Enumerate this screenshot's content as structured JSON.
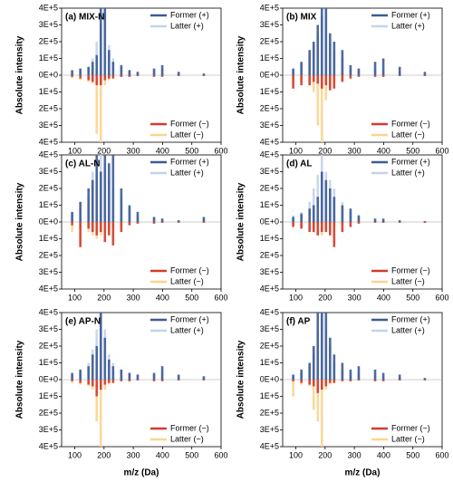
{
  "chart_data": [
    {
      "type": "bar",
      "title": "(a) MIX-N",
      "y_label": "Absolute intensity",
      "x": [
        91,
        119,
        147,
        161,
        175,
        189,
        203,
        217,
        231,
        259,
        287,
        315,
        371,
        399,
        455,
        541
      ],
      "xlim": [
        55,
        600
      ],
      "xticks": [
        100,
        200,
        300,
        400,
        500,
        600
      ],
      "ylim": [
        -400000,
        400000
      ],
      "yticks": [
        {
          "value": -400000,
          "label": "4E+5"
        },
        {
          "value": -300000,
          "label": "3E+5"
        },
        {
          "value": -200000,
          "label": "2E+5"
        },
        {
          "value": -100000,
          "label": "1E+5"
        },
        {
          "value": 0,
          "label": "0E+0"
        },
        {
          "value": 100000,
          "label": "1E+5"
        },
        {
          "value": 200000,
          "label": "2E+5"
        },
        {
          "value": 300000,
          "label": "3E+5"
        },
        {
          "value": 400000,
          "label": "4E+5"
        }
      ],
      "series": [
        {
          "name": "Latter (+)",
          "color": "#c5d3e8",
          "legend": "upper right",
          "values": [
            20000,
            30000,
            40000,
            100000,
            200000,
            300000,
            400000,
            180000,
            100000,
            50000,
            30000,
            20000,
            30000,
            40000,
            20000,
            10000
          ]
        },
        {
          "name": "Former (+)",
          "color": "#3b5b96",
          "legend": "upper right",
          "values": [
            30000,
            40000,
            50000,
            80000,
            120000,
            400000,
            400000,
            150000,
            80000,
            60000,
            30000,
            20000,
            40000,
            60000,
            20000,
            10000
          ]
        },
        {
          "name": "Latter (−)",
          "color": "#fcd490",
          "legend": "lower right",
          "values": [
            -20000,
            -30000,
            -40000,
            -50000,
            -350000,
            -400000,
            -60000,
            -30000,
            -20000,
            -10000,
            -10000,
            -5000,
            -10000,
            -10000,
            -5000,
            -5000
          ]
        },
        {
          "name": "Former (−)",
          "color": "#d23b2a",
          "legend": "lower right",
          "values": [
            -10000,
            -20000,
            -30000,
            -40000,
            -60000,
            -60000,
            -30000,
            -20000,
            -20000,
            -10000,
            -10000,
            -5000,
            -10000,
            -10000,
            -5000,
            -5000
          ]
        }
      ]
    },
    {
      "type": "bar",
      "title": "(b) MIX",
      "y_label": "Absolute intensity",
      "x": [
        91,
        119,
        147,
        161,
        175,
        189,
        203,
        217,
        231,
        259,
        287,
        315,
        371,
        399,
        455,
        541
      ],
      "xlim": [
        55,
        600
      ],
      "xticks": [
        100,
        200,
        300,
        400,
        500,
        600
      ],
      "ylim": [
        -400000,
        400000
      ],
      "yticks": [
        {
          "value": -400000,
          "label": "4E+5"
        },
        {
          "value": -300000,
          "label": "3E+5"
        },
        {
          "value": -200000,
          "label": "2E+5"
        },
        {
          "value": -100000,
          "label": "1E+5"
        },
        {
          "value": 0,
          "label": "0E+0"
        },
        {
          "value": 100000,
          "label": "1E+5"
        },
        {
          "value": 200000,
          "label": "2E+5"
        },
        {
          "value": 300000,
          "label": "3E+5"
        },
        {
          "value": 400000,
          "label": "4E+5"
        }
      ],
      "series": [
        {
          "name": "Latter (+)",
          "color": "#c5d3e8",
          "legend": "upper right",
          "values": [
            30000,
            60000,
            120000,
            180000,
            250000,
            350000,
            400000,
            200000,
            150000,
            100000,
            40000,
            30000,
            30000,
            30000,
            20000,
            10000
          ]
        },
        {
          "name": "Former (+)",
          "color": "#3b5b96",
          "legend": "upper right",
          "values": [
            40000,
            80000,
            150000,
            200000,
            300000,
            400000,
            400000,
            250000,
            200000,
            150000,
            60000,
            40000,
            80000,
            100000,
            50000,
            20000
          ]
        },
        {
          "name": "Latter (−)",
          "color": "#fcd490",
          "legend": "lower right",
          "values": [
            -40000,
            -40000,
            -60000,
            -100000,
            -300000,
            -400000,
            -150000,
            -60000,
            -40000,
            -30000,
            -10000,
            -10000,
            -10000,
            -10000,
            -5000,
            -5000
          ]
        },
        {
          "name": "Former (−)",
          "color": "#d23b2a",
          "legend": "lower right",
          "values": [
            -80000,
            -60000,
            -60000,
            -40000,
            -50000,
            -80000,
            -60000,
            -90000,
            -80000,
            -40000,
            -20000,
            -10000,
            -10000,
            -10000,
            -5000,
            -5000
          ]
        }
      ]
    },
    {
      "type": "bar",
      "title": "(c) AL-N",
      "y_label": "Absolute intensity",
      "x": [
        91,
        119,
        147,
        161,
        175,
        189,
        203,
        217,
        231,
        259,
        287,
        315,
        371,
        399,
        455,
        541
      ],
      "xlim": [
        55,
        600
      ],
      "xticks": [
        100,
        200,
        300,
        400,
        500,
        600
      ],
      "ylim": [
        -400000,
        400000
      ],
      "yticks": [
        {
          "value": -400000,
          "label": "4E+5"
        },
        {
          "value": -300000,
          "label": "3E+5"
        },
        {
          "value": -200000,
          "label": "2E+5"
        },
        {
          "value": -100000,
          "label": "1E+5"
        },
        {
          "value": 0,
          "label": "0E+0"
        },
        {
          "value": 100000,
          "label": "1E+5"
        },
        {
          "value": 200000,
          "label": "2E+5"
        },
        {
          "value": 300000,
          "label": "3E+5"
        },
        {
          "value": 400000,
          "label": "4E+5"
        }
      ],
      "series": [
        {
          "name": "Latter (+)",
          "color": "#c5d3e8",
          "legend": "upper right",
          "values": [
            50000,
            80000,
            150000,
            300000,
            400000,
            400000,
            350000,
            250000,
            200000,
            150000,
            80000,
            40000,
            30000,
            20000,
            10000,
            20000
          ]
        },
        {
          "name": "Former (+)",
          "color": "#3b5b96",
          "legend": "upper right",
          "values": [
            60000,
            120000,
            200000,
            250000,
            400000,
            300000,
            400000,
            350000,
            400000,
            200000,
            100000,
            60000,
            30000,
            20000,
            10000,
            30000
          ]
        },
        {
          "name": "Latter (−)",
          "color": "#fcd490",
          "legend": "lower right",
          "values": [
            -60000,
            -40000,
            -60000,
            -80000,
            -100000,
            -80000,
            -60000,
            -50000,
            -40000,
            -20000,
            -10000,
            -10000,
            -10000,
            -5000,
            -5000,
            -5000
          ]
        },
        {
          "name": "Former (−)",
          "color": "#d23b2a",
          "legend": "lower right",
          "values": [
            -20000,
            -150000,
            -40000,
            -60000,
            -80000,
            -60000,
            -120000,
            -80000,
            -140000,
            -60000,
            -20000,
            -10000,
            -10000,
            -5000,
            -5000,
            -5000
          ]
        }
      ]
    },
    {
      "type": "bar",
      "title": "(d) AL",
      "y_label": "Absolute intensity",
      "x": [
        91,
        119,
        147,
        161,
        175,
        189,
        203,
        217,
        231,
        259,
        287,
        315,
        371,
        399,
        455,
        541
      ],
      "xlim": [
        55,
        600
      ],
      "xticks": [
        100,
        200,
        300,
        400,
        500,
        600
      ],
      "ylim": [
        -400000,
        400000
      ],
      "yticks": [
        {
          "value": -400000,
          "label": "4E+5"
        },
        {
          "value": -300000,
          "label": "3E+5"
        },
        {
          "value": -200000,
          "label": "2E+5"
        },
        {
          "value": -100000,
          "label": "1E+5"
        },
        {
          "value": 0,
          "label": "0E+0"
        },
        {
          "value": 100000,
          "label": "1E+5"
        },
        {
          "value": 200000,
          "label": "2E+5"
        },
        {
          "value": 300000,
          "label": "3E+5"
        },
        {
          "value": 400000,
          "label": "4E+5"
        }
      ],
      "series": [
        {
          "name": "Latter (+)",
          "color": "#c5d3e8",
          "legend": "upper right",
          "values": [
            40000,
            60000,
            120000,
            200000,
            280000,
            400000,
            300000,
            250000,
            200000,
            120000,
            60000,
            30000,
            20000,
            10000,
            10000,
            5000
          ]
        },
        {
          "name": "Former (+)",
          "color": "#3b5b96",
          "legend": "upper right",
          "values": [
            30000,
            50000,
            80000,
            100000,
            150000,
            300000,
            250000,
            200000,
            150000,
            100000,
            80000,
            40000,
            20000,
            20000,
            10000,
            5000
          ]
        },
        {
          "name": "Latter (−)",
          "color": "#fcd490",
          "legend": "lower right",
          "values": [
            -20000,
            -40000,
            -50000,
            -60000,
            -80000,
            -80000,
            -60000,
            -40000,
            -30000,
            -20000,
            -10000,
            -10000,
            -5000,
            -5000,
            -5000,
            -5000
          ]
        },
        {
          "name": "Former (−)",
          "color": "#d23b2a",
          "legend": "lower right",
          "values": [
            -30000,
            -40000,
            -60000,
            -60000,
            -80000,
            -60000,
            -60000,
            -80000,
            -150000,
            -60000,
            -30000,
            -10000,
            -5000,
            -5000,
            -5000,
            -5000
          ]
        }
      ]
    },
    {
      "type": "bar",
      "title": "(e) AP-N",
      "y_label": "Absolute intensity",
      "x_label": "m/z (Da)",
      "x": [
        91,
        119,
        147,
        161,
        175,
        189,
        203,
        217,
        231,
        259,
        287,
        315,
        371,
        399,
        455,
        541
      ],
      "xlim": [
        55,
        600
      ],
      "xticks": [
        100,
        200,
        300,
        400,
        500,
        600
      ],
      "ylim": [
        -400000,
        400000
      ],
      "yticks": [
        {
          "value": -400000,
          "label": "4E+5"
        },
        {
          "value": -300000,
          "label": "3E+5"
        },
        {
          "value": -200000,
          "label": "2E+5"
        },
        {
          "value": -100000,
          "label": "1E+5"
        },
        {
          "value": 0,
          "label": "0E+0"
        },
        {
          "value": 100000,
          "label": "1E+5"
        },
        {
          "value": 200000,
          "label": "2E+5"
        },
        {
          "value": 300000,
          "label": "3E+5"
        },
        {
          "value": 400000,
          "label": "4E+5"
        }
      ],
      "series": [
        {
          "name": "Latter (+)",
          "color": "#c5d3e8",
          "legend": "upper right",
          "values": [
            30000,
            50000,
            100000,
            180000,
            300000,
            400000,
            300000,
            150000,
            100000,
            60000,
            40000,
            30000,
            30000,
            40000,
            20000,
            10000
          ]
        },
        {
          "name": "Former (+)",
          "color": "#3b5b96",
          "legend": "upper right",
          "values": [
            40000,
            60000,
            80000,
            150000,
            200000,
            400000,
            250000,
            120000,
            80000,
            60000,
            40000,
            30000,
            40000,
            80000,
            30000,
            20000
          ]
        },
        {
          "name": "Latter (−)",
          "color": "#fcd490",
          "legend": "lower right",
          "values": [
            -20000,
            -30000,
            -40000,
            -60000,
            -250000,
            -400000,
            -60000,
            -30000,
            -20000,
            -10000,
            -10000,
            -5000,
            -10000,
            -10000,
            -5000,
            -5000
          ]
        },
        {
          "name": "Former (−)",
          "color": "#d23b2a",
          "legend": "lower right",
          "values": [
            -10000,
            -20000,
            -30000,
            -40000,
            -100000,
            -60000,
            -30000,
            -20000,
            -20000,
            -10000,
            -10000,
            -5000,
            -10000,
            -10000,
            -5000,
            -5000
          ]
        }
      ]
    },
    {
      "type": "bar",
      "title": "(f) AP",
      "y_label": "Absolute intensity",
      "x_label": "m/z (Da)",
      "x": [
        91,
        119,
        147,
        161,
        175,
        189,
        203,
        217,
        231,
        259,
        287,
        315,
        371,
        399,
        455,
        541
      ],
      "xlim": [
        55,
        600
      ],
      "xticks": [
        100,
        200,
        300,
        400,
        500,
        600
      ],
      "ylim": [
        -400000,
        400000
      ],
      "yticks": [
        {
          "value": -400000,
          "label": "4E+5"
        },
        {
          "value": -300000,
          "label": "3E+5"
        },
        {
          "value": -200000,
          "label": "2E+5"
        },
        {
          "value": -100000,
          "label": "1E+5"
        },
        {
          "value": 0,
          "label": "0E+0"
        },
        {
          "value": 100000,
          "label": "1E+5"
        },
        {
          "value": 200000,
          "label": "2E+5"
        },
        {
          "value": 300000,
          "label": "3E+5"
        },
        {
          "value": 400000,
          "label": "4E+5"
        }
      ],
      "series": [
        {
          "name": "Latter (+)",
          "color": "#c5d3e8",
          "legend": "upper right",
          "values": [
            20000,
            40000,
            80000,
            150000,
            300000,
            400000,
            300000,
            200000,
            100000,
            60000,
            40000,
            40000,
            30000,
            20000,
            10000,
            5000
          ]
        },
        {
          "name": "Former (+)",
          "color": "#3b5b96",
          "legend": "upper right",
          "values": [
            30000,
            60000,
            100000,
            200000,
            400000,
            400000,
            400000,
            250000,
            150000,
            100000,
            60000,
            80000,
            60000,
            40000,
            30000,
            10000
          ]
        },
        {
          "name": "Latter (−)",
          "color": "#fcd490",
          "legend": "lower right",
          "values": [
            -100000,
            -30000,
            -40000,
            -180000,
            -250000,
            -400000,
            -60000,
            -30000,
            -20000,
            -10000,
            -10000,
            -5000,
            -10000,
            -10000,
            -5000,
            -5000
          ]
        },
        {
          "name": "Former (−)",
          "color": "#d23b2a",
          "legend": "lower right",
          "values": [
            -10000,
            -20000,
            -30000,
            -40000,
            -80000,
            -60000,
            -40000,
            -20000,
            -20000,
            -10000,
            -10000,
            -5000,
            -10000,
            -10000,
            -5000,
            -5000
          ]
        }
      ]
    }
  ]
}
